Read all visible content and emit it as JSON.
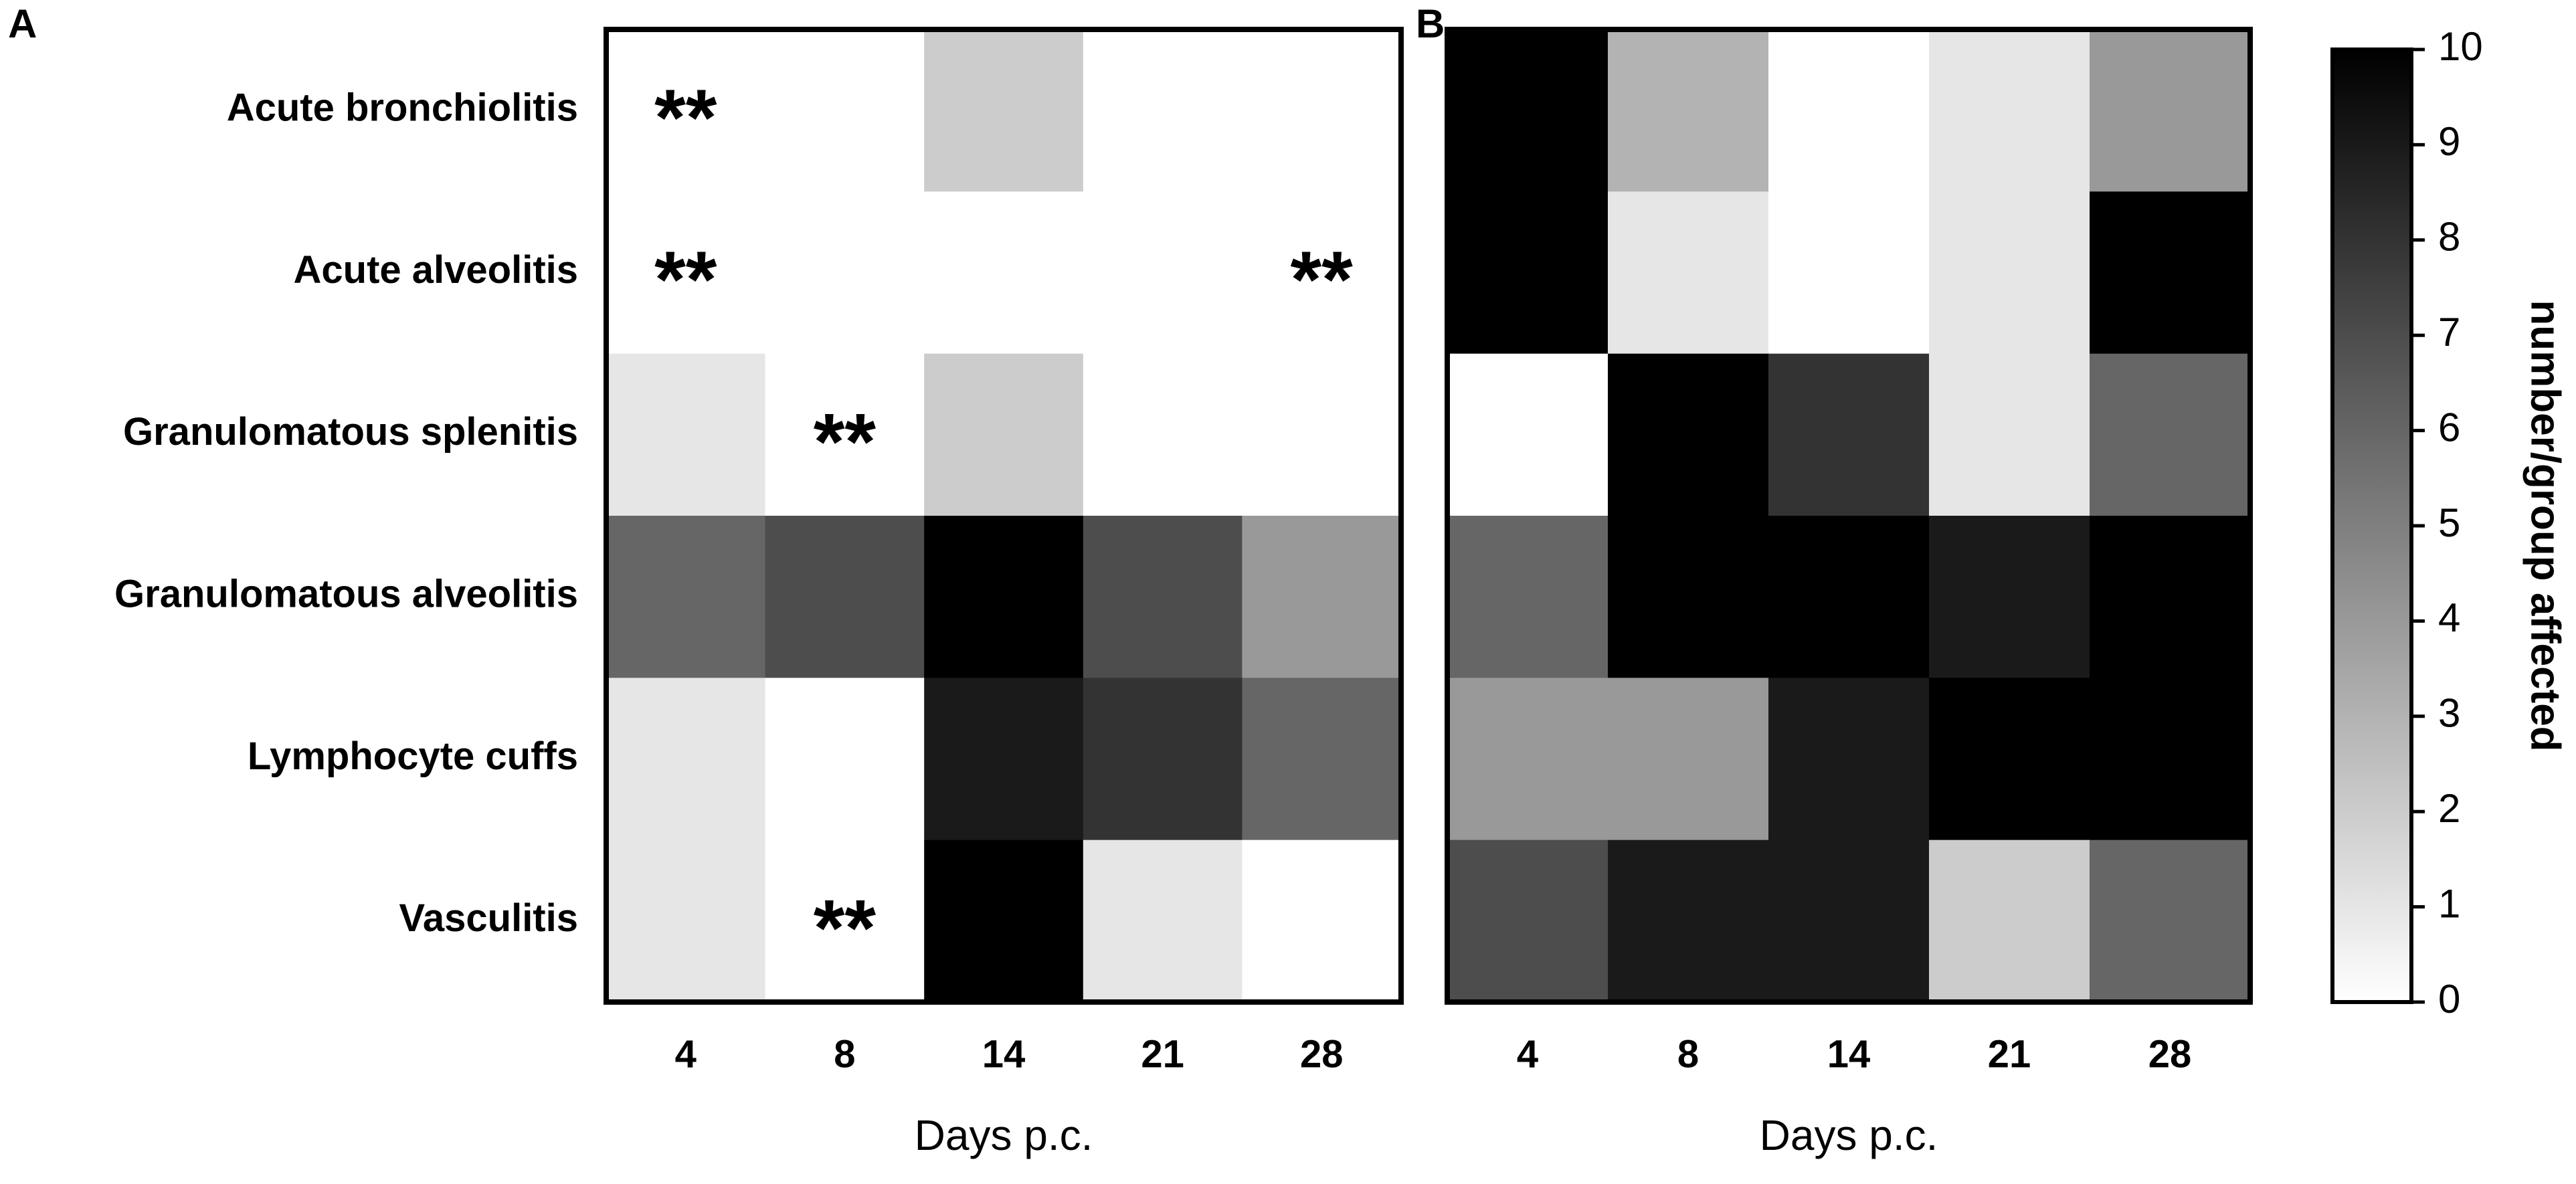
{
  "chart_data": [
    {
      "type": "heatmap",
      "panel_label": "A",
      "x": [
        "4",
        "8",
        "14",
        "21",
        "28"
      ],
      "categories": [
        "Acute bronchiolitis",
        "Acute alveolitis",
        "Granulomatous splenitis",
        "Granulomatous alveolitis",
        "Lymphocyte cuffs",
        "Vasculitis"
      ],
      "values": [
        [
          0,
          0,
          2,
          0,
          0
        ],
        [
          0,
          0,
          0,
          0,
          0
        ],
        [
          1,
          0,
          2,
          0,
          0
        ],
        [
          6,
          7,
          10,
          7,
          4
        ],
        [
          1,
          0,
          9,
          8,
          6
        ],
        [
          1,
          0,
          10,
          1,
          0
        ]
      ],
      "cell_labels": [
        [
          "**",
          null,
          null,
          null,
          null
        ],
        [
          "**",
          null,
          null,
          null,
          "**"
        ],
        [
          null,
          "**",
          null,
          null,
          null
        ],
        [
          null,
          null,
          null,
          null,
          null
        ],
        [
          null,
          null,
          null,
          null,
          null
        ],
        [
          null,
          "**",
          null,
          null,
          null
        ]
      ],
      "x_label": "Days p.c."
    },
    {
      "type": "heatmap",
      "panel_label": "B",
      "x": [
        "4",
        "8",
        "14",
        "21",
        "28"
      ],
      "values": [
        [
          10,
          3,
          0,
          1,
          4
        ],
        [
          10,
          1,
          0,
          1,
          10
        ],
        [
          0,
          10,
          8,
          1,
          6
        ],
        [
          6,
          10,
          10,
          9,
          10
        ],
        [
          4,
          4,
          9,
          10,
          10
        ],
        [
          7,
          9,
          9,
          2,
          6
        ]
      ],
      "x_label": "Days p.c."
    },
    {
      "type": "colorbar",
      "label": "number/group affected",
      "lim": [
        0,
        10
      ],
      "ticks": [
        0,
        1,
        2,
        3,
        4,
        5,
        6,
        7,
        8,
        9,
        10
      ],
      "colors": [
        "#ffffff",
        "#000000"
      ]
    }
  ]
}
